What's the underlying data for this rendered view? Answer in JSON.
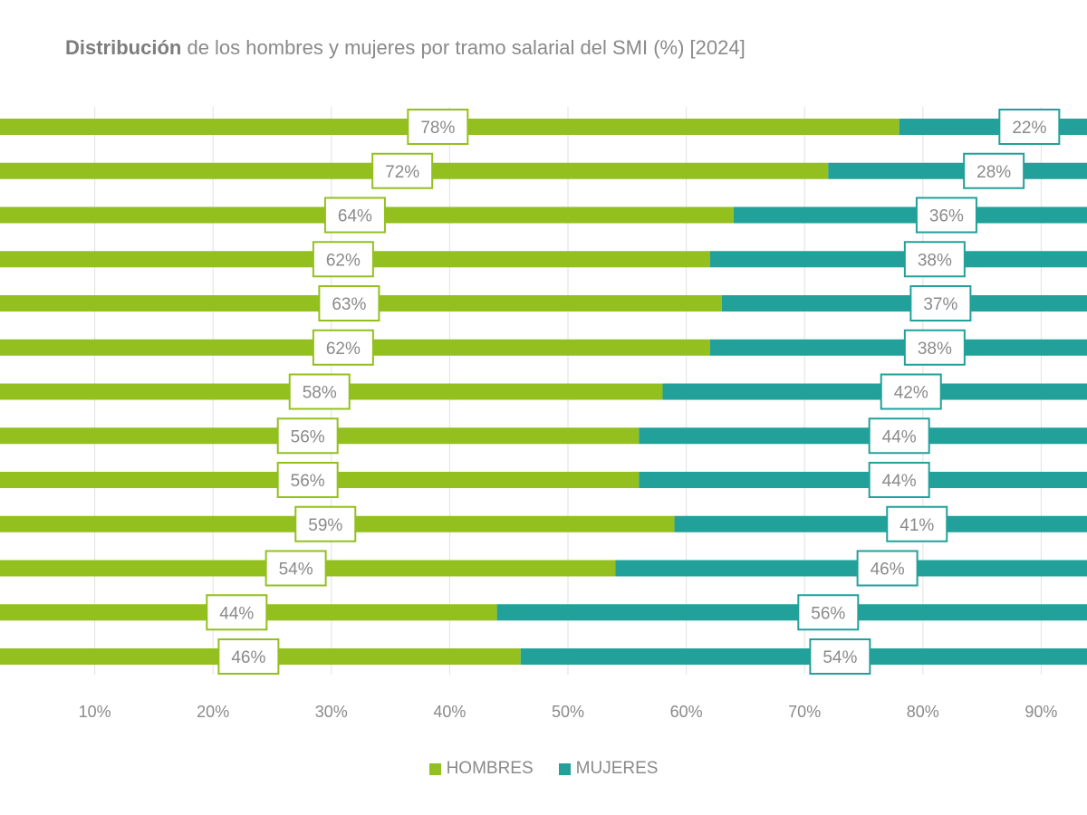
{
  "chart_data": {
    "type": "bar",
    "orientation": "horizontal",
    "stacked": true,
    "title_bold": "Distribución",
    "title_rest": " de los hombres y mujeres por tramo salarial del SMI (%) [2024]",
    "xlim": [
      0,
      100
    ],
    "x_ticks": [
      "10%",
      "20%",
      "30%",
      "40%",
      "50%",
      "60%",
      "70%",
      "80%",
      "90%"
    ],
    "grid": true,
    "legend_position": "bottom",
    "series": [
      {
        "name": "HOMBRES",
        "color": "#93c01f",
        "values": [
          78,
          72,
          64,
          62,
          63,
          62,
          58,
          56,
          56,
          59,
          54,
          44,
          46
        ]
      },
      {
        "name": "MUJERES",
        "color": "#22a09a",
        "values": [
          22,
          28,
          36,
          38,
          37,
          38,
          42,
          44,
          44,
          41,
          46,
          56,
          54
        ]
      }
    ]
  }
}
